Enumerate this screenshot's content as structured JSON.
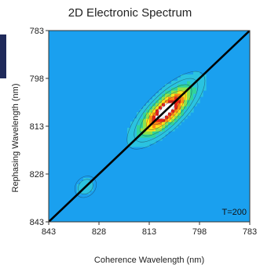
{
  "chart_data": {
    "type": "heatmap",
    "title": "2D Electronic Spectrum",
    "xlabel": "Coherence Wavelength (nm)",
    "ylabel": "Rephasing Wavelength (nm)",
    "xlim": [
      843,
      783
    ],
    "ylim": [
      843,
      783
    ],
    "x_ticks": [
      "843",
      "828",
      "813",
      "798",
      "783"
    ],
    "y_ticks": [
      "783",
      "798",
      "813",
      "828",
      "843"
    ],
    "annotation": "T=200",
    "diagonal": {
      "x": [
        843,
        783
      ],
      "y": [
        843,
        783
      ]
    },
    "peaks": [
      {
        "x": 808,
        "y": 808,
        "amplitude": 1.0,
        "sigma_major": 7.0,
        "sigma_minor": 2.6
      },
      {
        "x": 832,
        "y": 832,
        "amplitude": 0.18,
        "sigma_major": 2.2,
        "sigma_minor": 1.8
      }
    ],
    "colors": {
      "background": "#1aa0ef",
      "scale": [
        "#1aa0ef",
        "#2bc3e0",
        "#31d49a",
        "#8ee24a",
        "#ffe21a",
        "#ff8a14",
        "#e3251a",
        "#ffffff"
      ]
    }
  }
}
